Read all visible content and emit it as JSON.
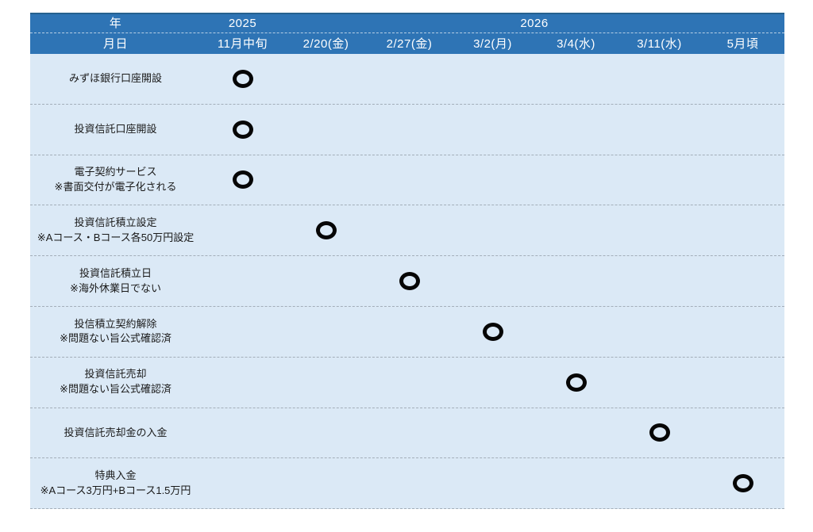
{
  "chart_data": {
    "type": "table",
    "header": {
      "year_label": "年",
      "date_label": "月日",
      "years": [
        {
          "label": "2025",
          "span_columns": 1
        },
        {
          "label": "2026",
          "span_columns": 6
        }
      ],
      "dates": [
        "11月中旬",
        "2/20(金)",
        "2/27(金)",
        "3/2(月)",
        "3/4(水)",
        "3/11(水)",
        "5月頃"
      ]
    },
    "rows": [
      {
        "title": "みずほ銀行口座開設",
        "note": "",
        "marker_col": 0,
        "marker_date": "11月中旬"
      },
      {
        "title": "投資信託口座開設",
        "note": "",
        "marker_col": 0,
        "marker_date": "11月中旬"
      },
      {
        "title": "電子契約サービス",
        "note": "※書面交付が電子化される",
        "marker_col": 0,
        "marker_date": "11月中旬"
      },
      {
        "title": "投資信託積立設定",
        "note": "※Aコース・Bコース各50万円設定",
        "marker_col": 1,
        "marker_date": "2/20(金)"
      },
      {
        "title": "投資信託積立日",
        "note": "※海外休業日でない",
        "marker_col": 2,
        "marker_date": "2/27(金)"
      },
      {
        "title": "投信積立契約解除",
        "note": "※問題ない旨公式確認済",
        "marker_col": 3,
        "marker_date": "3/2(月)"
      },
      {
        "title": "投資信託売却",
        "note": "※問題ない旨公式確認済",
        "marker_col": 4,
        "marker_date": "3/4(水)"
      },
      {
        "title": "投資信託売却金の入金",
        "note": "",
        "marker_col": 5,
        "marker_date": "3/11(水)"
      },
      {
        "title": "特典入金",
        "note": "※Aコース3万円+Bコース1.5万円",
        "marker_col": 6,
        "marker_date": "5月頃"
      }
    ],
    "marker": {
      "glyph": "〇",
      "color": "#000000"
    },
    "colors": {
      "header_bg": "#2e74b5",
      "header_text": "#ffffff",
      "header_top_border": "#26618f",
      "row_bg": "#dbe9f6",
      "row_separator": "#a3aeb9",
      "body_text": "#1a1a1a"
    },
    "layout_hints": {
      "grid": "dashed-row-separators",
      "legend_position": "none"
    }
  }
}
